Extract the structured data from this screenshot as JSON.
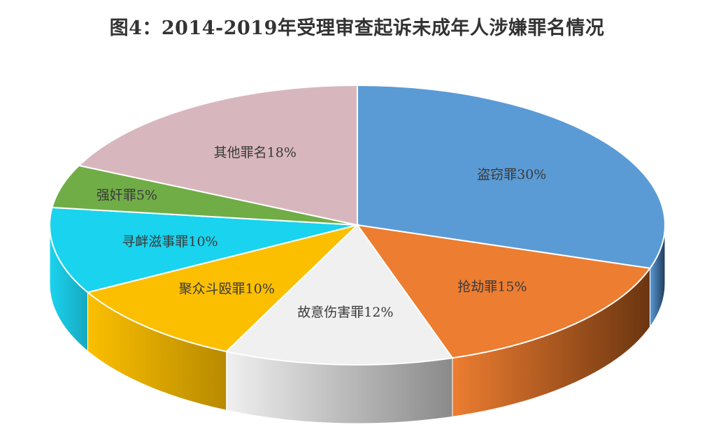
{
  "chart_data": {
    "type": "pie",
    "title": "图4：2014-2019年受理审查起诉未成年人涉嫌罪名情况",
    "slices": [
      {
        "name": "盗窃罪",
        "value": 30,
        "label": "盗窃罪30%",
        "color": "#5b9bd5",
        "side": "#1f3a5a"
      },
      {
        "name": "抢劫罪",
        "value": 15,
        "label": "抢劫罪15%",
        "color": "#ed7d31",
        "side": "#6b3510"
      },
      {
        "name": "故意伤害罪",
        "value": 12,
        "label": "故意伤害罪12%",
        "color": "#f0f0f0",
        "side": "#8a8a8a"
      },
      {
        "name": "聚众斗殴罪",
        "value": 10,
        "label": "聚众斗殴罪10%",
        "color": "#fbbf00",
        "side": "#b88a00"
      },
      {
        "name": "寻衅滋事罪",
        "value": 10,
        "label": "寻衅滋事罪10%",
        "color": "#1ad3ee",
        "side": "#18a8c0"
      },
      {
        "name": "强奸罪",
        "value": 5,
        "label": "强奸罪5%",
        "color": "#70ad47",
        "side": "#4e7d31"
      },
      {
        "name": "其他罪名",
        "value": 18,
        "label": "其他罪名18%",
        "color": "#d7b7bd",
        "side": "#a08a8e"
      }
    ]
  }
}
